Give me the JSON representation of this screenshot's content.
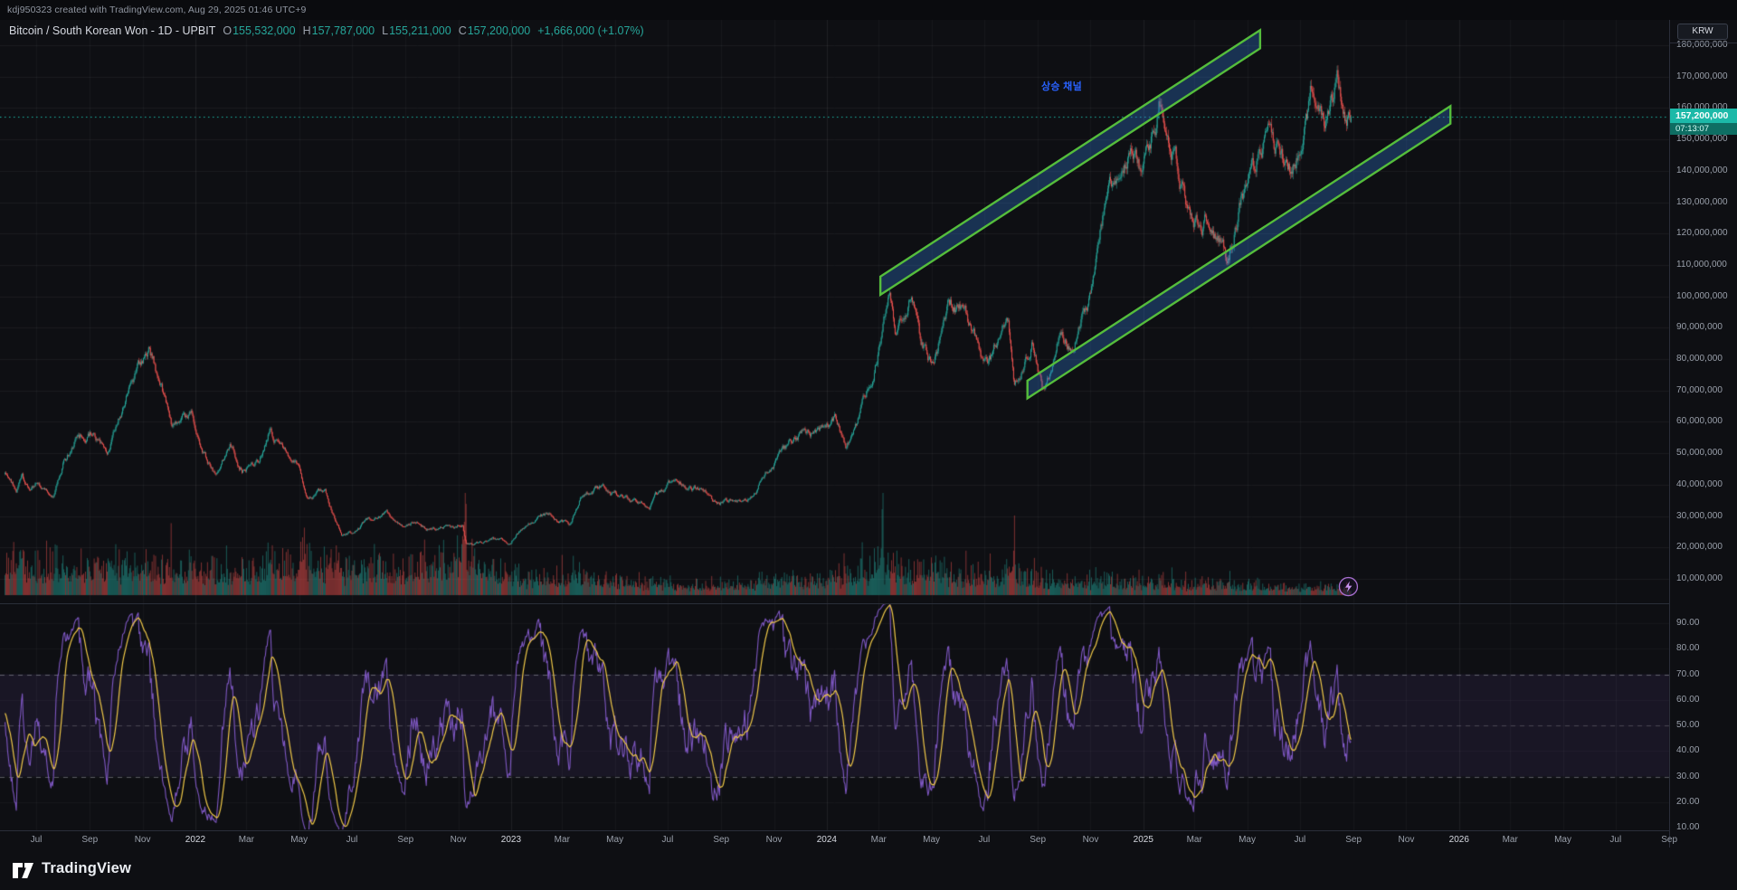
{
  "meta_bar": {
    "text": "kdj950323 created with TradingView.com, Aug 29, 2025 01:46 UTC+9"
  },
  "legend": {
    "title": "Bitcoin / South Korean Won - 1D - UPBIT",
    "ohlc": [
      {
        "label": "O",
        "value": "155,532,000"
      },
      {
        "label": "H",
        "value": "157,787,000"
      },
      {
        "label": "L",
        "value": "155,211,000"
      },
      {
        "label": "C",
        "value": "157,200,000"
      }
    ],
    "change": "+1,666,000 (+1.07%)"
  },
  "currency_button": {
    "label": "KRW"
  },
  "price_scale": {
    "labels": [
      "180,000,000",
      "170,000,000",
      "160,000,000",
      "150,000,000",
      "140,000,000",
      "130,000,000",
      "120,000,000",
      "110,000,000",
      "100,000,000",
      "90,000,000",
      "80,000,000",
      "70,000,000",
      "60,000,000",
      "50,000,000",
      "40,000,000",
      "30,000,000",
      "20,000,000",
      "10,000,000"
    ]
  },
  "price_tag": {
    "price": "157,200,000",
    "countdown": "07:13:07"
  },
  "rsi_scale": {
    "labels": [
      "90.00",
      "80.00",
      "70.00",
      "60.00",
      "50.00",
      "40.00",
      "30.00",
      "20.00",
      "10.00"
    ]
  },
  "time_axis": {
    "labels": [
      {
        "text": "Jul",
        "date": "2021-07-01",
        "year": false
      },
      {
        "text": "Sep",
        "date": "2021-09-01",
        "year": false
      },
      {
        "text": "Nov",
        "date": "2021-11-01",
        "year": false
      },
      {
        "text": "2022",
        "date": "2022-01-01",
        "year": true
      },
      {
        "text": "Mar",
        "date": "2022-03-01",
        "year": false
      },
      {
        "text": "May",
        "date": "2022-05-01",
        "year": false
      },
      {
        "text": "Jul",
        "date": "2022-07-01",
        "year": false
      },
      {
        "text": "Sep",
        "date": "2022-09-01",
        "year": false
      },
      {
        "text": "Nov",
        "date": "2022-11-01",
        "year": false
      },
      {
        "text": "2023",
        "date": "2023-01-01",
        "year": true
      },
      {
        "text": "Mar",
        "date": "2023-03-01",
        "year": false
      },
      {
        "text": "May",
        "date": "2023-05-01",
        "year": false
      },
      {
        "text": "Jul",
        "date": "2023-07-01",
        "year": false
      },
      {
        "text": "Sep",
        "date": "2023-09-01",
        "year": false
      },
      {
        "text": "Nov",
        "date": "2023-11-01",
        "year": false
      },
      {
        "text": "2024",
        "date": "2024-01-01",
        "year": true
      },
      {
        "text": "Mar",
        "date": "2024-03-01",
        "year": false
      },
      {
        "text": "May",
        "date": "2024-05-01",
        "year": false
      },
      {
        "text": "Jul",
        "date": "2024-07-01",
        "year": false
      },
      {
        "text": "Sep",
        "date": "2024-09-01",
        "year": false
      },
      {
        "text": "Nov",
        "date": "2024-11-01",
        "year": false
      },
      {
        "text": "2025",
        "date": "2025-01-01",
        "year": true
      },
      {
        "text": "Mar",
        "date": "2025-03-01",
        "year": false
      },
      {
        "text": "May",
        "date": "2025-05-01",
        "year": false
      },
      {
        "text": "Jul",
        "date": "2025-07-01",
        "year": false
      },
      {
        "text": "Sep",
        "date": "2025-09-01",
        "year": false
      },
      {
        "text": "Nov",
        "date": "2025-11-01",
        "year": false
      },
      {
        "text": "2026",
        "date": "2026-01-01",
        "year": true
      },
      {
        "text": "Mar",
        "date": "2026-03-01",
        "year": false
      },
      {
        "text": "May",
        "date": "2026-05-01",
        "year": false
      },
      {
        "text": "Jul",
        "date": "2026-07-01",
        "year": false
      },
      {
        "text": "Sep",
        "date": "2026-09-01",
        "year": false
      }
    ]
  },
  "logo": {
    "text": "TradingView"
  },
  "colors": {
    "background": "#0e0f13",
    "up": "#26a69a",
    "down": "#ef5350",
    "axis_text": "#9aa0ab",
    "year_text": "#d5d8e0",
    "separator": "#2a2e39",
    "rsi_line": "#7e57c2",
    "rsi_ma": "#f0c948",
    "band_fill": "rgba(126,87,194,0.10)",
    "band_line": "rgba(178,181,190,0.45)",
    "mid_line": "rgba(178,181,190,0.28)",
    "price_tag_bg": "#1cb9a8",
    "countdown_bg": "#0e6e63",
    "channel_stroke": "#55bd3c",
    "channel_fill": "rgba(49,121,214,0.33)",
    "annotation": "#2962ff",
    "marker_stroke": "#a86fd0",
    "marker_bolt": "#c894ef"
  },
  "chart_data": {
    "type": "candlestick",
    "symbol": "Bitcoin / South Korean Won",
    "interval": "1D",
    "exchange": "UPBIT",
    "currency": "KRW",
    "title": "Bitcoin / South Korean Won - 1D - UPBIT",
    "price_axis_range_millions": [
      10,
      180
    ],
    "time_range": [
      "2021-05-26",
      "2025-08-29"
    ],
    "visible_time_axis_end": "2026-09-01",
    "ohlc_last": {
      "open": 155532000,
      "high": 157787000,
      "low": 155211000,
      "close": 157200000,
      "change": "+1,666,000",
      "change_pct": "+1.07%"
    },
    "price_keyframes_millions": [
      [
        "2021-05-26",
        44
      ],
      [
        "2021-06-08",
        38.5
      ],
      [
        "2021-06-15",
        43
      ],
      [
        "2021-06-22",
        38
      ],
      [
        "2021-07-01",
        40
      ],
      [
        "2021-07-20",
        36
      ],
      [
        "2021-08-01",
        46
      ],
      [
        "2021-08-15",
        54
      ],
      [
        "2021-09-05",
        57
      ],
      [
        "2021-09-21",
        48.5
      ],
      [
        "2021-10-08",
        63
      ],
      [
        "2021-10-20",
        73
      ],
      [
        "2021-11-09",
        82
      ],
      [
        "2021-11-15",
        78
      ],
      [
        "2021-11-28",
        66
      ],
      [
        "2021-12-04",
        58
      ],
      [
        "2021-12-27",
        61
      ],
      [
        "2022-01-10",
        50.5
      ],
      [
        "2022-01-24",
        43
      ],
      [
        "2022-02-10",
        53
      ],
      [
        "2022-02-24",
        45.5
      ],
      [
        "2022-03-15",
        48
      ],
      [
        "2022-03-29",
        58
      ],
      [
        "2022-04-12",
        50
      ],
      [
        "2022-04-30",
        47
      ],
      [
        "2022-05-12",
        36
      ],
      [
        "2022-05-31",
        39
      ],
      [
        "2022-06-13",
        28
      ],
      [
        "2022-06-19",
        24.5
      ],
      [
        "2022-07-06",
        25.5
      ],
      [
        "2022-07-20",
        29
      ],
      [
        "2022-08-10",
        31
      ],
      [
        "2022-08-28",
        26.5
      ],
      [
        "2022-09-12",
        29
      ],
      [
        "2022-09-25",
        25.5
      ],
      [
        "2022-10-20",
        26.8
      ],
      [
        "2022-11-06",
        27.5
      ],
      [
        "2022-11-10",
        22
      ],
      [
        "2022-11-21",
        21.3
      ],
      [
        "2022-12-10",
        23
      ],
      [
        "2023-01-01",
        21.6
      ],
      [
        "2023-01-14",
        26.5
      ],
      [
        "2023-01-29",
        29.5
      ],
      [
        "2023-02-16",
        30.5
      ],
      [
        "2023-03-10",
        27
      ],
      [
        "2023-03-22",
        35.5
      ],
      [
        "2023-04-13",
        39.5
      ],
      [
        "2023-04-26",
        36.5
      ],
      [
        "2023-05-15",
        36
      ],
      [
        "2023-06-10",
        34
      ],
      [
        "2023-06-30",
        40
      ],
      [
        "2023-07-13",
        41
      ],
      [
        "2023-08-16",
        38
      ],
      [
        "2023-08-22",
        34.8
      ],
      [
        "2023-09-11",
        34.2
      ],
      [
        "2023-10-01",
        36
      ],
      [
        "2023-10-24",
        44.5
      ],
      [
        "2023-11-09",
        49.5
      ],
      [
        "2023-12-05",
        57.5
      ],
      [
        "2023-12-18",
        55
      ],
      [
        "2024-01-11",
        62
      ],
      [
        "2024-01-23",
        52.5
      ],
      [
        "2024-02-12",
        65
      ],
      [
        "2024-02-28",
        81
      ],
      [
        "2024-03-14",
        105
      ],
      [
        "2024-03-20",
        89
      ],
      [
        "2024-04-08",
        100
      ],
      [
        "2024-04-18",
        86
      ],
      [
        "2024-05-01",
        79
      ],
      [
        "2024-05-21",
        96
      ],
      [
        "2024-06-07",
        97
      ],
      [
        "2024-06-24",
        84
      ],
      [
        "2024-07-05",
        77
      ],
      [
        "2024-07-29",
        94
      ],
      [
        "2024-08-05",
        71
      ],
      [
        "2024-08-25",
        86
      ],
      [
        "2024-09-06",
        71.5
      ],
      [
        "2024-09-27",
        88
      ],
      [
        "2024-10-11",
        83
      ],
      [
        "2024-10-29",
        98
      ],
      [
        "2024-11-12",
        120
      ],
      [
        "2024-11-22",
        137
      ],
      [
        "2024-12-05",
        142
      ],
      [
        "2024-12-17",
        151
      ],
      [
        "2024-12-30",
        137
      ],
      [
        "2025-01-07",
        148
      ],
      [
        "2025-01-20",
        162
      ],
      [
        "2025-02-02",
        150
      ],
      [
        "2025-02-28",
        123
      ],
      [
        "2025-03-20",
        126
      ],
      [
        "2025-04-08",
        111
      ],
      [
        "2025-04-23",
        130
      ],
      [
        "2025-05-10",
        140
      ],
      [
        "2025-05-22",
        151
      ],
      [
        "2025-06-09",
        147
      ],
      [
        "2025-06-22",
        138
      ],
      [
        "2025-07-10",
        160
      ],
      [
        "2025-07-14",
        166
      ],
      [
        "2025-07-25",
        162
      ],
      [
        "2025-08-01",
        158
      ],
      [
        "2025-08-13",
        169
      ],
      [
        "2025-08-22",
        160
      ],
      [
        "2025-08-29",
        157.2
      ]
    ],
    "volume_profile": [
      [
        "2021-05-26",
        40
      ],
      [
        "2021-08-01",
        34
      ],
      [
        "2021-11-09",
        36
      ],
      [
        "2022-01-15",
        30
      ],
      [
        "2022-05-12",
        42
      ],
      [
        "2022-06-30",
        30
      ],
      [
        "2022-11-09",
        46
      ],
      [
        "2023-01-05",
        22
      ],
      [
        "2023-03-15",
        26
      ],
      [
        "2023-06-01",
        16
      ],
      [
        "2023-09-01",
        13
      ],
      [
        "2023-11-01",
        18
      ],
      [
        "2024-01-11",
        22
      ],
      [
        "2024-03-06",
        40
      ],
      [
        "2024-04-15",
        26
      ],
      [
        "2024-08-05",
        30
      ],
      [
        "2024-10-01",
        16
      ],
      [
        "2024-12-01",
        20
      ],
      [
        "2025-02-01",
        16
      ],
      [
        "2025-04-07",
        14
      ],
      [
        "2025-06-01",
        10
      ],
      [
        "2025-08-29",
        10
      ]
    ],
    "volume_spikes": {
      "2021-05-28": 1.6,
      "2021-12-04": 1.8,
      "2022-05-12": 1.9,
      "2022-06-13": 1.8,
      "2022-11-09": 2.4,
      "2023-03-14": 1.8,
      "2023-08-17": 1.7,
      "2024-03-05": 2.6,
      "2024-08-05": 2.8,
      "2024-12-05": 1.5,
      "2025-02-03": 1.8,
      "2025-08-01": 1.4
    },
    "indicator": {
      "name": "RSI",
      "length": 14,
      "overbought": 70,
      "midline": 50,
      "oversold": 30,
      "range_shown": [
        10,
        90
      ]
    },
    "price_line": {
      "value": 157200000,
      "countdown": "07:13:07"
    },
    "drawings": {
      "label": {
        "text": "상승 채널",
        "date": "2024-09-05",
        "price_m": 167
      },
      "channels": [
        {
          "from": {
            "date": "2024-03-03",
            "price_m": 100.5
          },
          "to": {
            "date": "2025-05-16",
            "price_m": 179.0
          },
          "width_m": 5.8
        },
        {
          "from": {
            "date": "2024-08-20",
            "price_m": 67.5
          },
          "to": {
            "date": "2025-12-22",
            "price_m": 155.0
          },
          "width_m": 5.6
        }
      ],
      "event_marker": {
        "date": "2025-08-26",
        "price_m": 7.5,
        "icon": "lightning"
      }
    }
  }
}
